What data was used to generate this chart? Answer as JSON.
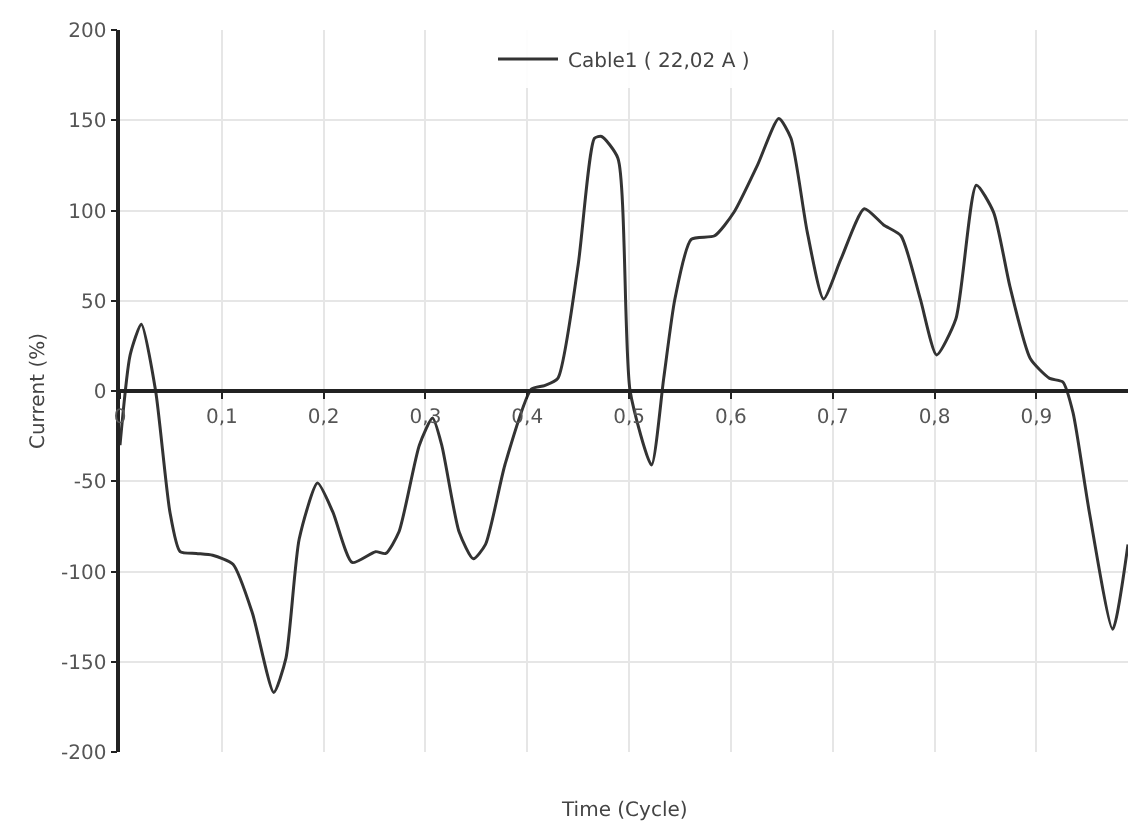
{
  "chart_data": {
    "type": "line",
    "xlabel": "Time (Cycle)",
    "ylabel": "Current (%)",
    "x": [
      0,
      0.01,
      0.021,
      0.035,
      0.049,
      0.059,
      0.075,
      0.091,
      0.111,
      0.13,
      0.151,
      0.163,
      0.176,
      0.194,
      0.209,
      0.228,
      0.251,
      0.261,
      0.274,
      0.294,
      0.307,
      0.316,
      0.333,
      0.347,
      0.359,
      0.378,
      0.404,
      0.417,
      0.43,
      0.45,
      0.466,
      0.473,
      0.489,
      0.501,
      0.522,
      0.534,
      0.545,
      0.561,
      0.584,
      0.603,
      0.626,
      0.647,
      0.659,
      0.675,
      0.691,
      0.708,
      0.731,
      0.75,
      0.767,
      0.786,
      0.802,
      0.821,
      0.841,
      0.858,
      0.874,
      0.894,
      0.913,
      0.926,
      0.936,
      0.952,
      0.975,
      0.99
    ],
    "series": [
      {
        "name": "Cable1 ( 22,02 A )",
        "color": "#333333",
        "values": [
          -30,
          20,
          37,
          0,
          -67,
          -89,
          -90,
          -91,
          -96,
          -123,
          -167,
          -148,
          -82,
          -51,
          -67,
          -95,
          -89,
          -90,
          -78,
          -30,
          -15,
          -30,
          -78,
          -93,
          -85,
          -41,
          1,
          3,
          7,
          70,
          140,
          141,
          129,
          0,
          -41,
          7,
          51,
          84,
          86,
          99,
          125,
          151,
          140,
          88,
          51,
          73,
          101,
          92,
          86,
          51,
          20,
          40,
          114,
          99,
          58,
          18,
          7,
          5,
          -12,
          -67,
          -132,
          -85
        ]
      }
    ],
    "xlim": [
      0,
      0.99
    ],
    "ylim": [
      -200,
      200
    ],
    "xticks": [
      {
        "value": 0,
        "label": "0"
      },
      {
        "value": 0.1,
        "label": "0,1"
      },
      {
        "value": 0.2,
        "label": "0,2"
      },
      {
        "value": 0.3,
        "label": "0,3"
      },
      {
        "value": 0.4,
        "label": "0,4"
      },
      {
        "value": 0.5,
        "label": "0,5"
      },
      {
        "value": 0.6,
        "label": "0,6"
      },
      {
        "value": 0.7,
        "label": "0,7"
      },
      {
        "value": 0.8,
        "label": "0,8"
      },
      {
        "value": 0.9,
        "label": "0,9"
      }
    ],
    "yticks": [
      -200,
      -150,
      -100,
      -50,
      0,
      50,
      100,
      150,
      200
    ],
    "grid": true,
    "legend": "top",
    "marker": "none",
    "line_style": "solid"
  }
}
